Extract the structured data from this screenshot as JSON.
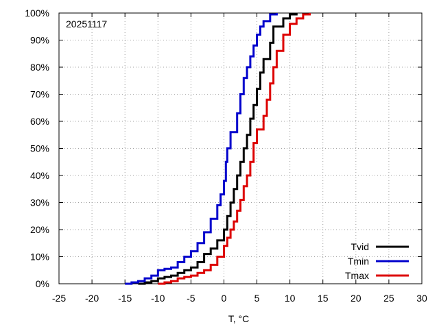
{
  "chart_data": {
    "type": "line",
    "title": "",
    "annotation": "20251117",
    "xlabel": "T, °C",
    "ylabel": "",
    "xlim": [
      -25,
      30
    ],
    "ylim": [
      0,
      100
    ],
    "x_ticks": [
      -25,
      -20,
      -15,
      -10,
      -5,
      0,
      5,
      10,
      15,
      20,
      25,
      30
    ],
    "y_ticks": [
      0,
      10,
      20,
      30,
      40,
      50,
      60,
      70,
      80,
      90,
      100
    ],
    "y_tick_labels": [
      "0%",
      "10%",
      "20%",
      "30%",
      "40%",
      "50%",
      "60%",
      "70%",
      "80%",
      "90%",
      "100%"
    ],
    "x_tick_labels": [
      "-25",
      "-20",
      "-15",
      "-10",
      "-5",
      "0",
      "5",
      "10",
      "15",
      "20",
      "25",
      "30"
    ],
    "grid": true,
    "legend_position": "bottom-right",
    "series": [
      {
        "name": "Tvid",
        "color": "#000000",
        "points": [
          [
            -13,
            0
          ],
          [
            -12,
            0.5
          ],
          [
            -11,
            1
          ],
          [
            -10,
            2
          ],
          [
            -9,
            2.5
          ],
          [
            -8,
            3
          ],
          [
            -7,
            4
          ],
          [
            -6,
            5
          ],
          [
            -5,
            6
          ],
          [
            -4,
            8
          ],
          [
            -3,
            11
          ],
          [
            -2,
            13
          ],
          [
            -1,
            16
          ],
          [
            0,
            20
          ],
          [
            0.5,
            25
          ],
          [
            1,
            30
          ],
          [
            1.5,
            35
          ],
          [
            2,
            40
          ],
          [
            2.5,
            45
          ],
          [
            3,
            50
          ],
          [
            3.5,
            55
          ],
          [
            4,
            61
          ],
          [
            4.5,
            66
          ],
          [
            5,
            72
          ],
          [
            5.5,
            78
          ],
          [
            6,
            83
          ],
          [
            7,
            89
          ],
          [
            7.5,
            95
          ],
          [
            9,
            98
          ],
          [
            10,
            99.5
          ],
          [
            11,
            100
          ]
        ]
      },
      {
        "name": "Tmin",
        "color": "#0000cc",
        "points": [
          [
            -15,
            0
          ],
          [
            -14,
            0.5
          ],
          [
            -13,
            1
          ],
          [
            -12,
            2
          ],
          [
            -11,
            3
          ],
          [
            -10,
            5
          ],
          [
            -9,
            5.5
          ],
          [
            -8,
            6
          ],
          [
            -7,
            8
          ],
          [
            -6,
            10
          ],
          [
            -5,
            12
          ],
          [
            -4,
            15
          ],
          [
            -3,
            19
          ],
          [
            -2,
            24
          ],
          [
            -1,
            29
          ],
          [
            -0.5,
            33
          ],
          [
            0,
            38
          ],
          [
            0.3,
            45
          ],
          [
            0.5,
            50
          ],
          [
            1,
            56
          ],
          [
            2,
            63
          ],
          [
            2.5,
            70
          ],
          [
            3,
            76
          ],
          [
            3.5,
            80
          ],
          [
            4,
            84
          ],
          [
            4.5,
            88
          ],
          [
            5,
            92
          ],
          [
            5.5,
            95
          ],
          [
            6,
            97
          ],
          [
            7,
            99.5
          ],
          [
            8,
            100
          ]
        ]
      },
      {
        "name": "Tmax",
        "color": "#dd0000",
        "points": [
          [
            -10,
            0
          ],
          [
            -9,
            0.5
          ],
          [
            -8,
            1
          ],
          [
            -7,
            2
          ],
          [
            -6,
            2.5
          ],
          [
            -5,
            3
          ],
          [
            -4,
            4
          ],
          [
            -3,
            5
          ],
          [
            -2,
            7
          ],
          [
            -1,
            10
          ],
          [
            0,
            14
          ],
          [
            0.5,
            17
          ],
          [
            1,
            20
          ],
          [
            1.5,
            23
          ],
          [
            2,
            27
          ],
          [
            2.5,
            31
          ],
          [
            3,
            36
          ],
          [
            3.5,
            40
          ],
          [
            4,
            45
          ],
          [
            4.5,
            52
          ],
          [
            5,
            57
          ],
          [
            6,
            62
          ],
          [
            6.5,
            68
          ],
          [
            7,
            74
          ],
          [
            7.5,
            80
          ],
          [
            8,
            86
          ],
          [
            9,
            92
          ],
          [
            10,
            96
          ],
          [
            11,
            98
          ],
          [
            12,
            99.5
          ],
          [
            13,
            100
          ]
        ]
      }
    ]
  }
}
